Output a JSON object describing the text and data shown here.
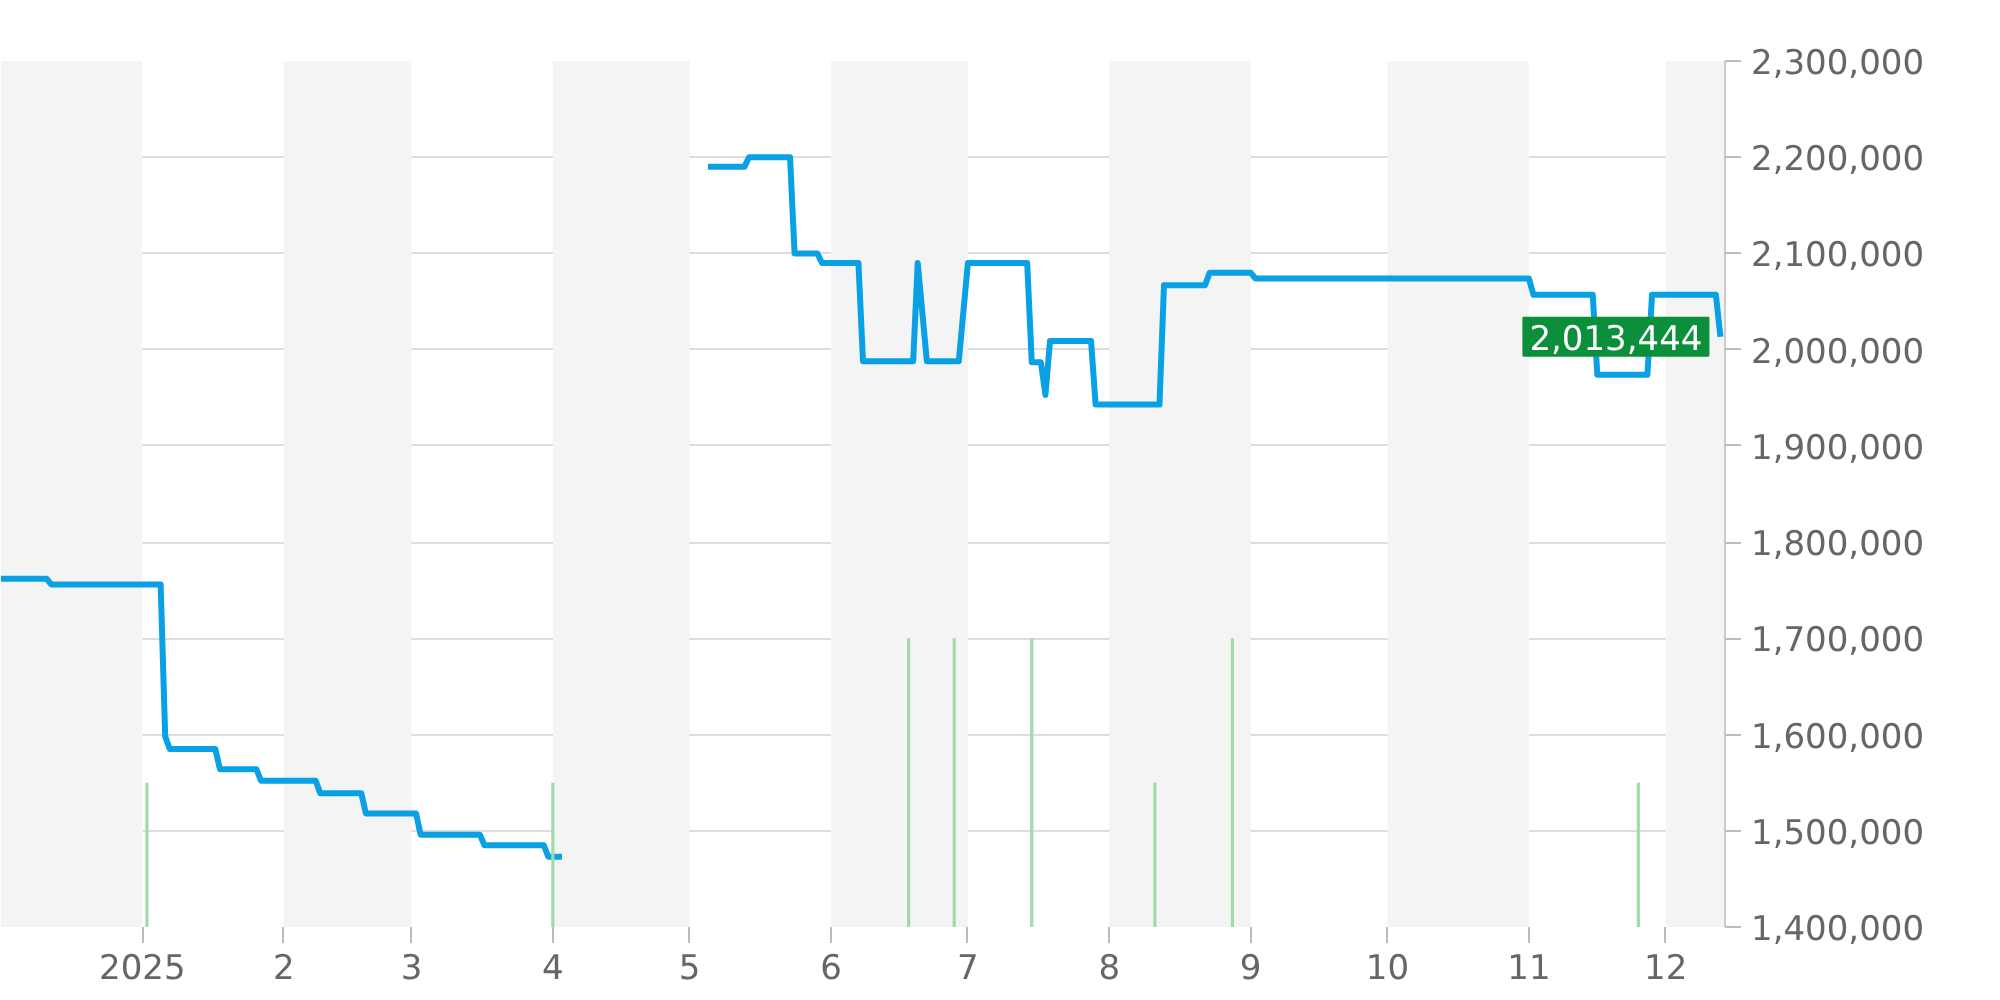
{
  "chart_data": {
    "type": "line",
    "xlim": [
      "2024-12-01",
      "2025-12-14"
    ],
    "xticks": [
      {
        "value": "2025-01-01",
        "label": "2025"
      },
      {
        "value": "2025-02-01",
        "label": "2"
      },
      {
        "value": "2025-03-01",
        "label": "3"
      },
      {
        "value": "2025-04-01",
        "label": "4"
      },
      {
        "value": "2025-05-01",
        "label": "5"
      },
      {
        "value": "2025-06-01",
        "label": "6"
      },
      {
        "value": "2025-07-01",
        "label": "7"
      },
      {
        "value": "2025-08-01",
        "label": "8"
      },
      {
        "value": "2025-09-01",
        "label": "9"
      },
      {
        "value": "2025-10-01",
        "label": "10"
      },
      {
        "value": "2025-11-01",
        "label": "11"
      },
      {
        "value": "2025-12-01",
        "label": "12"
      }
    ],
    "ylim": [
      1400000,
      2300000
    ],
    "yticks": [
      {
        "value": 1400000,
        "label": "1,400,000"
      },
      {
        "value": 1500000,
        "label": "1,500,000"
      },
      {
        "value": 1600000,
        "label": "1,600,000"
      },
      {
        "value": 1700000,
        "label": "1,700,000"
      },
      {
        "value": 1800000,
        "label": "1,800,000"
      },
      {
        "value": 1900000,
        "label": "1,900,000"
      },
      {
        "value": 2000000,
        "label": "2,000,000"
      },
      {
        "value": 2100000,
        "label": "2,100,000"
      },
      {
        "value": 2200000,
        "label": "2,200,000"
      },
      {
        "value": 2300000,
        "label": "2,300,000"
      }
    ],
    "grid": "y",
    "series": [
      {
        "type": "line",
        "color": "#0aa0e4",
        "x": [
          "2024-12-01",
          "2024-12-11",
          "2024-12-12",
          "2025-01-05",
          "2025-01-06",
          "2025-01-07",
          "2025-01-17",
          "2025-01-18",
          "2025-01-26",
          "2025-01-27",
          "2025-02-08",
          "2025-02-09",
          "2025-02-18",
          "2025-02-19",
          "2025-03-02",
          "2025-03-03",
          "2025-03-16",
          "2025-03-17",
          "2025-03-30",
          "2025-03-31",
          "2025-04-03",
          "2025-04-20",
          "2025-05-05",
          "2025-05-13",
          "2025-05-14",
          "2025-05-23",
          "2025-05-24",
          "2025-05-29",
          "2025-05-30",
          "2025-06-07",
          "2025-06-08",
          "2025-06-19",
          "2025-06-20",
          "2025-06-22",
          "2025-06-29",
          "2025-07-01",
          "2025-07-14",
          "2025-07-15",
          "2025-07-17",
          "2025-07-18",
          "2025-07-19",
          "2025-07-28",
          "2025-07-29",
          "2025-08-12",
          "2025-08-13",
          "2025-08-22",
          "2025-08-23",
          "2025-09-01",
          "2025-09-02",
          "2025-11-01",
          "2025-11-02",
          "2025-11-15",
          "2025-11-16",
          "2025-11-27",
          "2025-11-28",
          "2025-12-12",
          "2025-12-13"
        ],
        "values": [
          1762000,
          1762000,
          1756000,
          1756000,
          1598000,
          1585000,
          1585000,
          1564000,
          1564000,
          1552000,
          1552000,
          1539000,
          1539000,
          1518000,
          1518000,
          1496000,
          1496000,
          1485000,
          1485000,
          1473000,
          1473000,
          null,
          2190000,
          2190000,
          2200000,
          2200000,
          2100000,
          2100000,
          2090000,
          2090000,
          1988000,
          1988000,
          2090000,
          1988000,
          1988000,
          2090000,
          2090000,
          1987000,
          1987000,
          1953000,
          2009000,
          2009000,
          1943000,
          1943000,
          2067000,
          2067000,
          2080000,
          2080000,
          2074000,
          2074000,
          2057000,
          2057000,
          1974000,
          1974000,
          2057000,
          2057000,
          2013444
        ]
      },
      {
        "type": "bar",
        "color": "#9fdca8",
        "x": [
          "2025-01-02",
          "2025-04-01",
          "2025-06-18",
          "2025-06-28",
          "2025-07-15",
          "2025-08-11",
          "2025-08-28",
          "2025-11-25"
        ],
        "base": [
          1400000,
          1400000,
          1400000,
          1400000,
          1400000,
          1400000,
          1400000,
          1400000
        ],
        "values": [
          150000,
          150000,
          300000,
          300000,
          300000,
          150000,
          300000,
          150000
        ]
      }
    ],
    "bands": [
      {
        "axis": "x",
        "from": "2024-12-01",
        "to": "2025-01-01",
        "color": "#f4f4f4"
      },
      {
        "axis": "x",
        "from": "2025-02-01",
        "to": "2025-03-01",
        "color": "#f4f4f4"
      },
      {
        "axis": "x",
        "from": "2025-04-01",
        "to": "2025-05-01",
        "color": "#f4f4f4"
      },
      {
        "axis": "x",
        "from": "2025-06-01",
        "to": "2025-07-01",
        "color": "#f4f4f4"
      },
      {
        "axis": "x",
        "from": "2025-08-01",
        "to": "2025-09-01",
        "color": "#f4f4f4"
      },
      {
        "axis": "x",
        "from": "2025-10-01",
        "to": "2025-11-01",
        "color": "#f4f4f4"
      },
      {
        "axis": "x",
        "from": "2025-12-01",
        "to": "2025-12-14",
        "color": "#f4f4f4"
      }
    ],
    "annotations": [
      {
        "text": "2,013,444",
        "x": "2025-12-13",
        "y": 2013444
      }
    ]
  }
}
